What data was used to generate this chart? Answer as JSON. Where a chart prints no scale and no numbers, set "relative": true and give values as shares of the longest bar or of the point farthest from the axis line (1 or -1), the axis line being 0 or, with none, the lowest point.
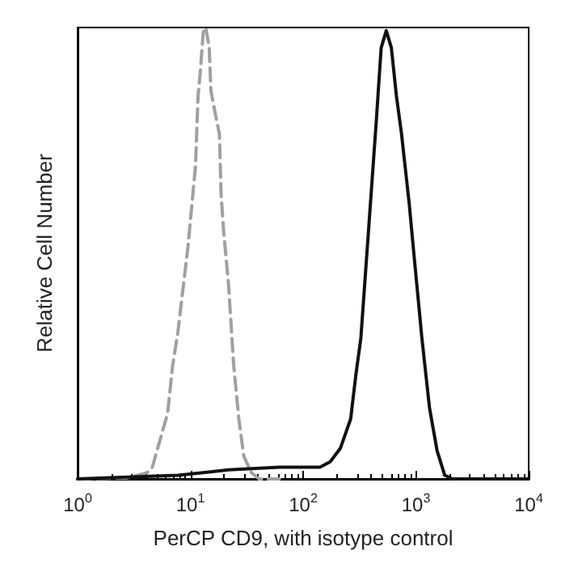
{
  "chart_data": {
    "type": "line",
    "xlabel": "PerCP CD9, with isotype control",
    "ylabel": "Relative Cell Number",
    "relative": true,
    "log": "x",
    "grid": false,
    "marker": "none",
    "tick_labels": "x",
    "xlim": [
      1,
      10000
    ],
    "xticks": [
      {
        "value": 1,
        "label": "10$^{0}$"
      },
      {
        "value": 10,
        "label": "10$^{1}$"
      },
      {
        "value": 100,
        "label": "10$^{2}$"
      },
      {
        "value": 1000,
        "label": "10$^{3}$"
      },
      {
        "value": 10000,
        "label": "10$^{4}$"
      }
    ],
    "series": [
      {
        "color": "#a0a0a0",
        "line_style": "dashed",
        "x": [
          1,
          2.74,
          4.15,
          4.6,
          5.38,
          6.28,
          6.97,
          7.74,
          8.58,
          9.52,
          11.1,
          11.7,
          12.3,
          13.0,
          13.7,
          14.7,
          15.2,
          16.9,
          18.1,
          18.7,
          19.7,
          21.8,
          24.2,
          26.9,
          29.8,
          34.8,
          40.7,
          61.7
        ],
        "values": [
          0,
          0.002,
          0.014,
          0.026,
          0.086,
          0.145,
          0.252,
          0.324,
          0.419,
          0.514,
          0.693,
          0.848,
          0.907,
          0.99,
          1.0,
          0.955,
          0.86,
          0.8,
          0.764,
          0.633,
          0.55,
          0.431,
          0.252,
          0.133,
          0.05,
          0.014,
          0,
          0
        ]
      },
      {
        "color": "#111111",
        "line_style": "solid",
        "x": [
          1,
          7.74,
          21.8,
          61.7,
          141,
          174,
          214,
          264,
          293,
          325,
          380,
          444,
          492,
          546,
          606,
          672,
          746,
          872,
          967,
          1130,
          1321,
          1543,
          1803,
          2108,
          10000
        ],
        "values": [
          0,
          0.008,
          0.02,
          0.026,
          0.026,
          0.038,
          0.068,
          0.133,
          0.229,
          0.312,
          0.55,
          0.788,
          0.955,
          0.993,
          0.955,
          0.848,
          0.764,
          0.61,
          0.49,
          0.312,
          0.157,
          0.062,
          0.008,
          0,
          0
        ]
      }
    ]
  }
}
